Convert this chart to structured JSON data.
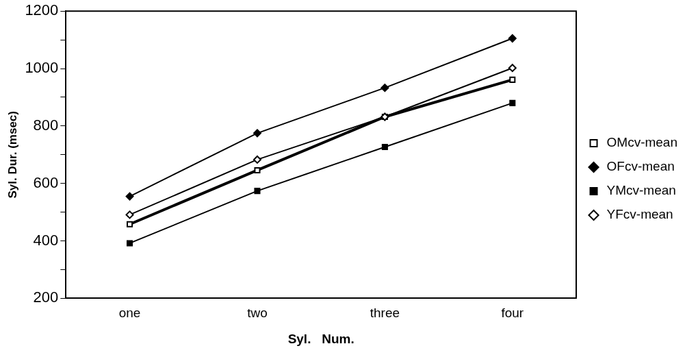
{
  "chart_data": {
    "type": "line",
    "xlabel": "Syl.   Num.",
    "ylabel": "Syl. Dur. (msec)",
    "categories": [
      "one",
      "two",
      "three",
      "four"
    ],
    "series": [
      {
        "name": "OMcv-mean",
        "color": "#000000",
        "marker": "square",
        "values": [
          458,
          646,
          832,
          961
        ]
      },
      {
        "name": "OFcv-mean",
        "color": "#000000",
        "marker": "diamond",
        "values": [
          555,
          775,
          933,
          1105
        ]
      },
      {
        "name": "YMcv-mean",
        "color": "#000000",
        "marker": "square",
        "values": [
          392,
          574,
          727,
          880
        ]
      },
      {
        "name": "YFcv-mean",
        "color": "#000000",
        "marker": "diamond",
        "values": [
          491,
          683,
          832,
          1002
        ]
      }
    ],
    "ylim": [
      200,
      1200
    ],
    "yticks": [
      200,
      {
        "value": 300,
        "label": null
      },
      400,
      {
        "value": 500,
        "label": null
      },
      600,
      {
        "value": 700,
        "label": null
      },
      800,
      {
        "value": 900,
        "label": null
      },
      1000,
      {
        "value": 1100,
        "label": null
      },
      1200
    ],
    "grid": false,
    "legend": "right",
    "line_style": "solid"
  }
}
